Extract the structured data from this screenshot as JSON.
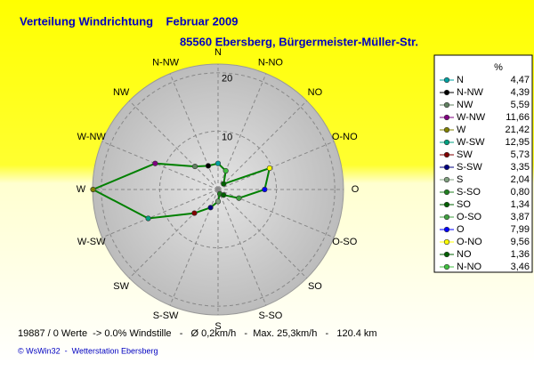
{
  "chart_data": {
    "type": "radar",
    "title": "Verteilung Windrichtung    Februar 2009",
    "subtitle": "85560 Ebersberg, Bürgermeister-Müller-Str.",
    "value_header": "%",
    "categories": [
      "N",
      "N-NW",
      "NW",
      "W-NW",
      "W",
      "W-SW",
      "SW",
      "S-SW",
      "S",
      "S-SO",
      "SO",
      "O-SO",
      "O",
      "O-NO",
      "NO",
      "N-NO"
    ],
    "values": [
      4.47,
      4.39,
      5.59,
      11.66,
      21.42,
      12.95,
      5.73,
      3.35,
      2.04,
      0.8,
      1.34,
      3.87,
      7.99,
      9.56,
      1.36,
      3.46
    ],
    "value_labels": [
      "4,47",
      "4,39",
      "5,59",
      "11,66",
      "21,42",
      "12,95",
      "5,73",
      "3,35",
      "2,04",
      "0,80",
      "1,34",
      "3,87",
      "7,99",
      "9,56",
      "1,36",
      "3,46"
    ],
    "colors": [
      "#00a0a0",
      "#000000",
      "#608060",
      "#800080",
      "#808000",
      "#00a080",
      "#800000",
      "#000080",
      "#80a080",
      "#208020",
      "#006000",
      "#40a040",
      "#0000ff",
      "#ffff00",
      "#006000",
      "#40c040"
    ],
    "line_color": "#008000",
    "rlim": [
      0,
      21.5
    ],
    "rticks": [
      10,
      20
    ],
    "footer": "19887 / 0 Werte  -> 0.0% Windstille   -   Ø 0,2km/h   -  Max. 25,3km/h   -   120.4 km",
    "credit": "© WsWin32  -  Wetterstation Ebersberg"
  }
}
